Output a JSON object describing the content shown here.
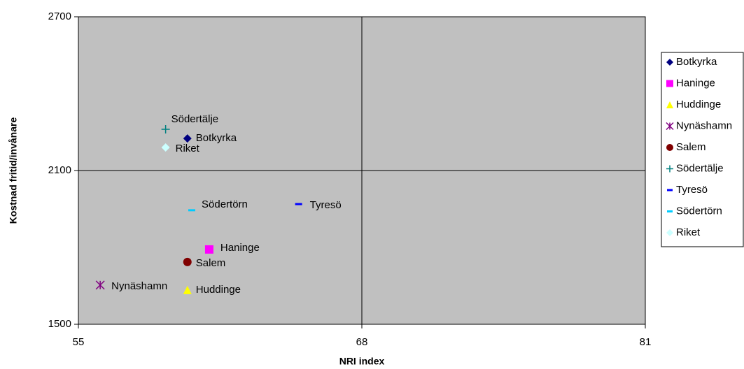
{
  "chart_data": {
    "type": "scatter",
    "x_label": "NRI index",
    "y_label": "Kostnad fritid/invånare",
    "xlim": [
      55,
      81
    ],
    "xticks": [
      55,
      68,
      81
    ],
    "ylim": [
      1500,
      2700
    ],
    "yticks": [
      1500,
      2100,
      2700
    ],
    "grid": true,
    "legend": "right",
    "series": [
      {
        "name": "Botkyrka",
        "color": "#000080",
        "marker": "diamond",
        "x": [
          60
        ],
        "values": [
          2225
        ]
      },
      {
        "name": "Haninge",
        "color": "#ff00ff",
        "marker": "square",
        "x": [
          61
        ],
        "values": [
          1792
        ]
      },
      {
        "name": "Huddinge",
        "color": "#ffff00",
        "marker": "triangle",
        "x": [
          60
        ],
        "values": [
          1634
        ]
      },
      {
        "name": "Nynäshamn",
        "color": "#800080",
        "marker": "asterisk",
        "x": [
          56
        ],
        "values": [
          1653
        ]
      },
      {
        "name": "Salem",
        "color": "#800000",
        "marker": "circle",
        "x": [
          60
        ],
        "values": [
          1743
        ]
      },
      {
        "name": "Södertälje",
        "color": "#008080",
        "marker": "plus",
        "x": [
          59
        ],
        "values": [
          2261
        ]
      },
      {
        "name": "Tyresö",
        "color": "#0000ff",
        "marker": "dash",
        "x": [
          65.1
        ],
        "values": [
          1969
        ]
      },
      {
        "name": "Södertörn",
        "color": "#00ccff",
        "marker": "dash",
        "x": [
          60.2
        ],
        "values": [
          1945
        ]
      },
      {
        "name": "Riket",
        "color": "#ccffff",
        "marker": "diamond",
        "x": [
          59
        ],
        "values": [
          2190
        ]
      }
    ]
  }
}
